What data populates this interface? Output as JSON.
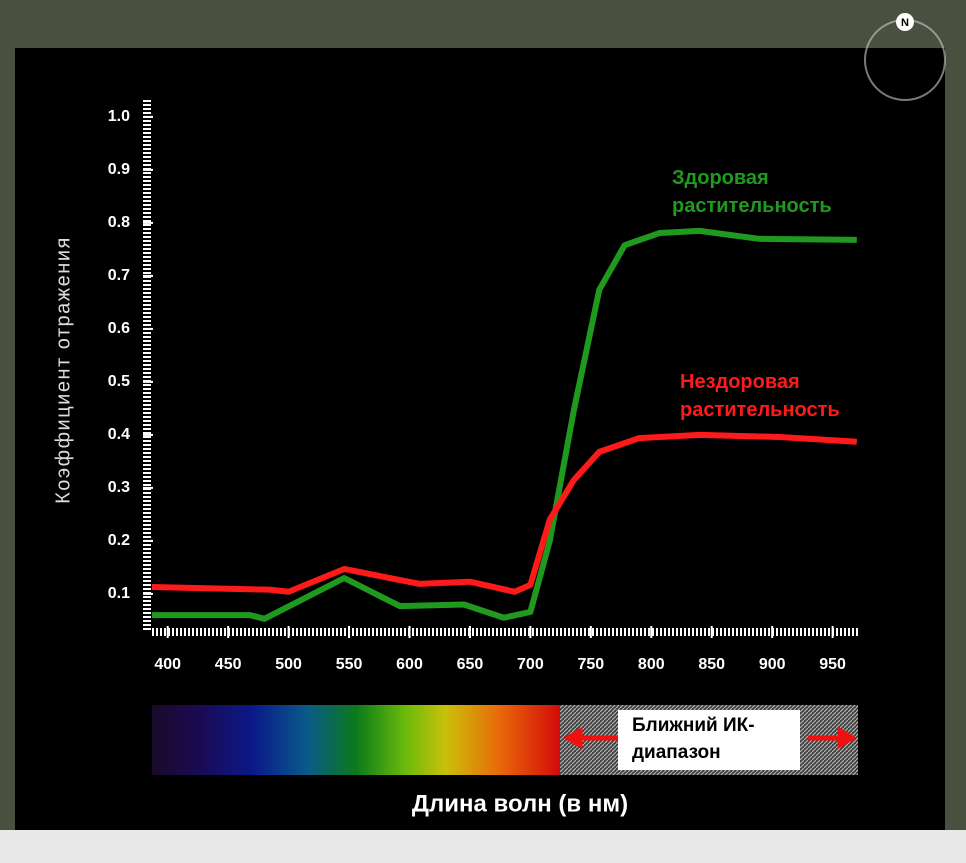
{
  "chart_data": {
    "type": "line",
    "y_label": "Коэффициент отражения",
    "x_label": "Длина волн (в нм)",
    "xlim": [
      387,
      971
    ],
    "ylim": [
      0.03,
      1.03
    ],
    "xticks": [
      400,
      450,
      500,
      550,
      600,
      650,
      700,
      750,
      800,
      850,
      900,
      950
    ],
    "yticks": [
      0.1,
      0.2,
      0.3,
      0.4,
      0.5,
      0.6,
      0.7,
      0.8,
      0.9,
      {
        "value": 1,
        "label": "1.0"
      }
    ],
    "series": [
      {
        "name": "Здоровая растительность",
        "color": "#1f9a1f",
        "x": [
          387,
          468,
          480,
          546,
          592,
          645,
          678,
          700,
          716,
          736,
          757,
          778,
          807,
          840,
          889,
          970
        ],
        "values": [
          0.06,
          0.06,
          0.053,
          0.13,
          0.077,
          0.08,
          0.055,
          0.066,
          0.2,
          0.447,
          0.674,
          0.758,
          0.781,
          0.785,
          0.77,
          0.768
        ]
      },
      {
        "name": "Нездоровая растительность",
        "color": "#ff1a1a",
        "x": [
          387,
          484,
          500,
          546,
          608,
          650,
          687,
          700,
          716,
          736,
          757,
          790,
          840,
          906,
          970
        ],
        "values": [
          0.113,
          0.108,
          0.104,
          0.147,
          0.119,
          0.123,
          0.104,
          0.117,
          0.24,
          0.315,
          0.368,
          0.394,
          0.4,
          0.396,
          0.387
        ]
      }
    ],
    "nir_label": "Ближний ИК-диапазон"
  },
  "compass": "N"
}
